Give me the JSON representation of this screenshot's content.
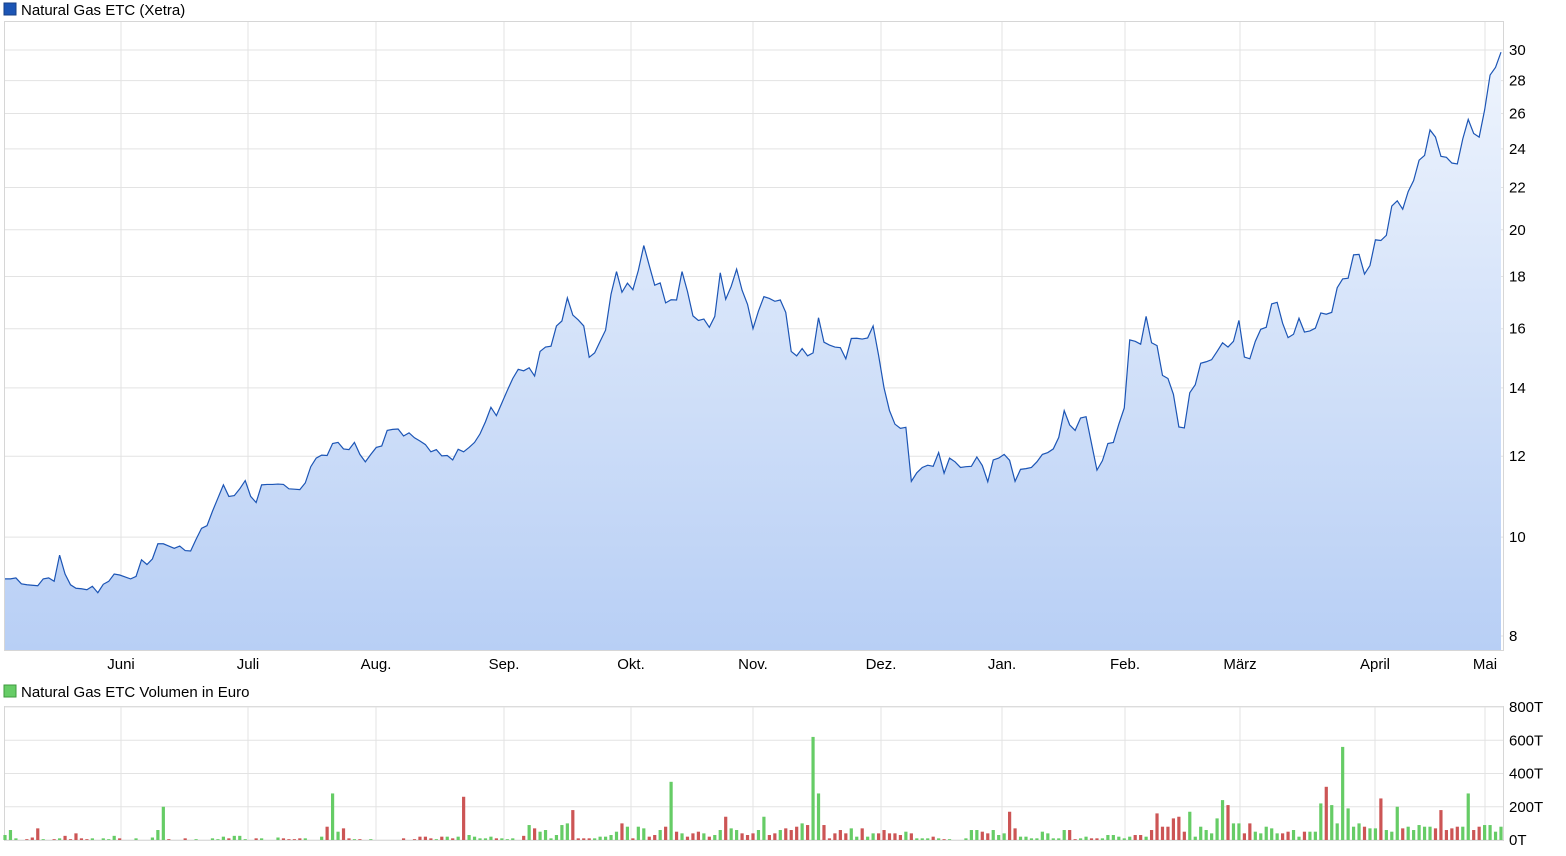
{
  "chart_data": [
    {
      "type": "area",
      "title": "Natural Gas ETC (Xetra)",
      "scale": "log",
      "series_color": "#1c55b5",
      "fill_top_color": "#eef4fd",
      "fill_bottom_color": "#b8cff5",
      "ylim": [
        7.6,
        32
      ],
      "y_ticks": [
        "8",
        "10",
        "12",
        "14",
        "16",
        "18",
        "20",
        "22",
        "24",
        "26",
        "28",
        "30"
      ],
      "x_labels": [
        "Juni",
        "Juli",
        "Aug.",
        "Sep.",
        "Okt.",
        "Nov.",
        "Dez.",
        "Jan.",
        "Feb.",
        "März",
        "April",
        "Mai"
      ],
      "grid": true,
      "values": [
        9.1,
        9.1,
        9.12,
        9.0,
        8.98,
        8.97,
        8.96,
        9.1,
        9.12,
        9.05,
        9.6,
        9.2,
        8.98,
        8.91,
        8.9,
        8.88,
        8.95,
        8.82,
        8.99,
        9.05,
        9.2,
        9.18,
        9.14,
        9.1,
        9.15,
        9.5,
        9.4,
        9.52,
        9.85,
        9.85,
        9.8,
        9.75,
        9.8,
        9.7,
        9.69,
        9.95,
        10.2,
        10.26,
        10.6,
        10.92,
        11.25,
        10.96,
        10.98,
        11.15,
        11.36,
        10.96,
        10.81,
        11.25,
        11.26,
        11.26,
        11.27,
        11.26,
        11.15,
        11.14,
        11.13,
        11.3,
        11.72,
        11.95,
        12.03,
        12.02,
        12.35,
        12.38,
        12.2,
        12.18,
        12.38,
        12.05,
        11.85,
        12.05,
        12.24,
        12.28,
        12.72,
        12.75,
        12.76,
        12.56,
        12.65,
        12.51,
        12.42,
        12.32,
        12.12,
        12.18,
        12.01,
        12.02,
        11.9,
        12.19,
        12.12,
        12.24,
        12.38,
        12.62,
        12.97,
        13.4,
        13.15,
        13.53,
        13.92,
        14.3,
        14.6,
        14.55,
        14.65,
        14.38,
        15.2,
        15.35,
        15.38,
        16.1,
        16.28,
        17.15,
        16.5,
        16.32,
        16.1,
        15.0,
        15.15,
        15.55,
        15.95,
        17.3,
        18.2,
        17.37,
        17.73,
        17.47,
        18.25,
        19.3,
        18.45,
        17.65,
        17.74,
        16.96,
        17.08,
        17.07,
        18.2,
        17.4,
        16.47,
        16.3,
        16.35,
        16.05,
        16.45,
        18.15,
        17.1,
        17.6,
        18.3,
        17.45,
        16.9,
        16.0,
        16.65,
        17.2,
        17.13,
        17.02,
        17.07,
        16.6,
        15.2,
        15.05,
        15.3,
        15.05,
        15.15,
        16.4,
        15.52,
        15.42,
        15.35,
        15.33,
        14.95,
        15.65,
        15.66,
        15.63,
        15.67,
        16.1,
        15.07,
        14.0,
        13.3,
        12.9,
        12.78,
        12.81,
        11.34,
        11.56,
        11.7,
        11.76,
        11.73,
        12.1,
        11.55,
        11.95,
        11.85,
        11.7,
        11.72,
        11.73,
        11.98,
        11.75,
        11.33,
        11.9,
        11.95,
        12.05,
        11.89,
        11.34,
        11.65,
        11.67,
        11.7,
        11.85,
        12.05,
        12.1,
        12.2,
        12.52,
        13.3,
        12.88,
        12.72,
        13.08,
        13.12,
        12.35,
        11.63,
        11.88,
        12.35,
        12.38,
        12.9,
        13.38,
        15.6,
        15.55,
        15.45,
        16.45,
        15.5,
        15.4,
        14.4,
        14.3,
        13.8,
        12.82,
        12.79,
        13.85,
        14.1,
        14.8,
        14.85,
        14.92,
        15.2,
        15.5,
        15.35,
        15.55,
        16.3,
        15.01,
        14.95,
        15.55,
        15.98,
        16.05,
        16.92,
        16.98,
        16.2,
        15.68,
        15.8,
        16.38,
        15.88,
        15.92,
        16.02,
        16.58,
        16.53,
        16.6,
        17.55,
        17.9,
        17.93,
        18.9,
        18.92,
        18.1,
        18.45,
        19.55,
        19.52,
        19.75,
        21.1,
        21.35,
        20.95,
        21.8,
        22.35,
        23.4,
        23.65,
        25.05,
        24.65,
        23.6,
        23.55,
        23.25,
        23.2,
        24.55,
        25.65,
        24.85,
        24.65,
        26.2,
        28.35,
        28.85,
        29.85
      ]
    },
    {
      "type": "bar",
      "title": "Natural Gas ETC Volumen in Euro",
      "up_color": "#66cc66",
      "down_color": "#cc5555",
      "ylim": [
        0,
        800
      ],
      "y_ticks": [
        "0T",
        "200T",
        "400T",
        "600T",
        "800T"
      ],
      "x_labels": [
        "Juni",
        "Juli",
        "Aug.",
        "Sep.",
        "Okt.",
        "Nov.",
        "Dez.",
        "Jan.",
        "Feb.",
        "März",
        "April",
        "Mai"
      ],
      "grid": true,
      "values": [
        30,
        60,
        10,
        0,
        5,
        15,
        70,
        5,
        0,
        5,
        10,
        25,
        5,
        40,
        10,
        5,
        10,
        0,
        10,
        5,
        25,
        10,
        0,
        0,
        10,
        0,
        0,
        15,
        60,
        200,
        5,
        0,
        0,
        10,
        0,
        5,
        0,
        0,
        10,
        5,
        20,
        10,
        25,
        25,
        5,
        0,
        10,
        10,
        0,
        0,
        15,
        10,
        5,
        5,
        10,
        10,
        0,
        0,
        20,
        80,
        280,
        50,
        70,
        10,
        5,
        5,
        0,
        5,
        0,
        0,
        0,
        0,
        0,
        10,
        0,
        5,
        20,
        20,
        10,
        5,
        20,
        20,
        10,
        20,
        260,
        30,
        20,
        10,
        10,
        20,
        10,
        10,
        5,
        10,
        0,
        25,
        90,
        70,
        50,
        60,
        10,
        30,
        90,
        100,
        180,
        10,
        10,
        10,
        10,
        20,
        20,
        30,
        50,
        100,
        80,
        10,
        80,
        70,
        20,
        30,
        60,
        80,
        350,
        50,
        40,
        20,
        40,
        50,
        40,
        20,
        30,
        60,
        140,
        70,
        60,
        40,
        30,
        40,
        60,
        140,
        30,
        40,
        60,
        70,
        60,
        80,
        100,
        90,
        620,
        280,
        90,
        10,
        40,
        60,
        40,
        70,
        20,
        70,
        20,
        40,
        40,
        60,
        40,
        40,
        30,
        50,
        40,
        10,
        10,
        10,
        20,
        10,
        5,
        5,
        0,
        0,
        10,
        60,
        60,
        50,
        40,
        60,
        30,
        40,
        170,
        70,
        20,
        20,
        10,
        10,
        50,
        40,
        10,
        10,
        60,
        60,
        5,
        10,
        20,
        10,
        10,
        10,
        30,
        30,
        20,
        10,
        20,
        30,
        30,
        20,
        60,
        160,
        80,
        80,
        130,
        140,
        50,
        170,
        20,
        80,
        60,
        40,
        130,
        240,
        210,
        100,
        100,
        40,
        100,
        50,
        40,
        80,
        70,
        40,
        40,
        50,
        60,
        20,
        50,
        50,
        50,
        220,
        320,
        210,
        100,
        560,
        190,
        80,
        100,
        80,
        70,
        70,
        250,
        60,
        50,
        200,
        70,
        80,
        60,
        90,
        80,
        80,
        70,
        180,
        60,
        70,
        80,
        80,
        280,
        60,
        80,
        90,
        90,
        50,
        80,
        90,
        310,
        20,
        50,
        80,
        130,
        250,
        160,
        210,
        60,
        120,
        380,
        200,
        60,
        140,
        110,
        70,
        70,
        80,
        80,
        90,
        80
      ]
    }
  ]
}
